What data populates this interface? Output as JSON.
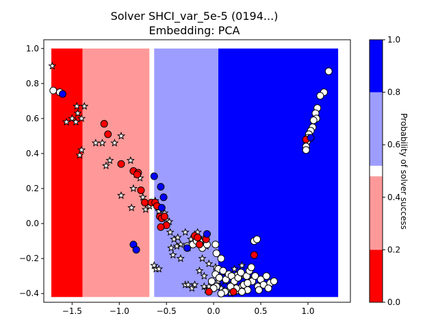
{
  "chart_data": {
    "type": "scatter",
    "title_line1": "Solver SHCI_var_5e-5 (0194...)",
    "title_line2": "Embedding: PCA",
    "xlim": [
      -1.8,
      1.45
    ],
    "ylim": [
      -0.45,
      1.05
    ],
    "x_ticks": [
      -1.5,
      -1.0,
      -0.5,
      0.0,
      0.5,
      1.0
    ],
    "x_tick_labels": [
      "−1.5",
      "−1.0",
      "−0.5",
      "0.0",
      "0.5",
      "1.0"
    ],
    "y_ticks": [
      -0.4,
      -0.2,
      0.0,
      0.2,
      0.4,
      0.6,
      0.8,
      1.0
    ],
    "y_tick_labels": [
      "−0.4",
      "−0.2",
      "0.0",
      "0.2",
      "0.4",
      "0.6",
      "0.8",
      "1.0"
    ],
    "grid": false,
    "background_regions": {
      "y_range": [
        -0.42,
        1.0
      ],
      "x_range": [
        -1.72,
        1.32
      ],
      "bands": [
        {
          "x_start": -1.72,
          "x_end": -1.39,
          "probability": 0.1,
          "color": "#ff0000"
        },
        {
          "x_start": -1.39,
          "x_end": -0.68,
          "probability": 0.3,
          "color": "#ff9999"
        },
        {
          "x_start": -0.68,
          "x_end": -0.63,
          "probability": 0.5,
          "color": "#ffffff"
        },
        {
          "x_start": -0.63,
          "x_end": 0.05,
          "probability": 0.7,
          "color": "#9d9dff"
        },
        {
          "x_start": 0.05,
          "x_end": 1.32,
          "probability": 0.9,
          "color": "#0000ff"
        }
      ]
    },
    "colorbar": {
      "label": "Probability of solver success",
      "ticks": [
        0.0,
        0.2,
        0.4,
        0.6,
        0.8,
        1.0
      ],
      "tick_labels": [
        "0.0",
        "0.2",
        "0.4",
        "0.6",
        "0.8",
        "1.0"
      ],
      "segments": [
        {
          "from": 0.0,
          "to": 0.2,
          "color": "#ff0000"
        },
        {
          "from": 0.2,
          "to": 0.48,
          "color": "#ff9999"
        },
        {
          "from": 0.48,
          "to": 0.52,
          "color": "#ffffff"
        },
        {
          "from": 0.52,
          "to": 0.8,
          "color": "#9d9dff"
        },
        {
          "from": 0.8,
          "to": 1.0,
          "color": "#0000ff"
        }
      ]
    },
    "series": [
      {
        "marker": "star",
        "fill": "#ffffff",
        "edge": "#000000",
        "points": [
          [
            -1.71,
            0.9
          ],
          [
            -1.56,
            0.58
          ],
          [
            -1.5,
            0.6
          ],
          [
            -1.46,
            0.58
          ],
          [
            -1.45,
            0.67
          ],
          [
            -1.44,
            0.63
          ],
          [
            -1.4,
            0.6
          ],
          [
            -1.37,
            0.67
          ],
          [
            -1.42,
            0.39
          ],
          [
            -1.4,
            0.42
          ],
          [
            -1.25,
            0.46
          ],
          [
            -1.18,
            0.46
          ],
          [
            -1.14,
            0.33
          ],
          [
            -1.1,
            0.36
          ],
          [
            -1.05,
            0.46
          ],
          [
            -0.98,
            0.5
          ],
          [
            -0.88,
            0.36
          ],
          [
            -0.98,
            0.16
          ],
          [
            -0.87,
            0.09
          ],
          [
            -0.85,
            0.2
          ],
          [
            -0.82,
            0.28
          ],
          [
            -0.78,
            0.26
          ],
          [
            -0.75,
            0.15
          ],
          [
            -0.72,
            0.08
          ],
          [
            -0.68,
            0.1
          ],
          [
            -0.62,
            0.13
          ],
          [
            -0.58,
            0.07
          ],
          [
            -0.52,
            0.06
          ],
          [
            -0.5,
            0.02
          ],
          [
            -0.47,
            0.01
          ],
          [
            -0.46,
            -0.05
          ],
          [
            -0.42,
            -0.09
          ],
          [
            -0.38,
            -0.08
          ],
          [
            -0.35,
            -0.12
          ],
          [
            -0.3,
            -0.05
          ],
          [
            -0.27,
            -0.14
          ],
          [
            -0.24,
            -0.09
          ],
          [
            -0.2,
            -0.11
          ],
          [
            -0.17,
            -0.05
          ],
          [
            -0.13,
            -0.1
          ],
          [
            -0.1,
            -0.08
          ],
          [
            -0.08,
            -0.13
          ],
          [
            -0.45,
            -0.14
          ],
          [
            -0.43,
            -0.18
          ],
          [
            -0.39,
            -0.13
          ],
          [
            -0.35,
            -0.2
          ],
          [
            -0.15,
            -0.27
          ],
          [
            -0.1,
            -0.3
          ],
          [
            -0.05,
            -0.23
          ],
          [
            -0.12,
            -0.2
          ],
          [
            -0.63,
            -0.24
          ],
          [
            -0.61,
            -0.26
          ],
          [
            -0.58,
            -0.26
          ],
          [
            -0.3,
            -0.35
          ],
          [
            -0.27,
            -0.35
          ],
          [
            -0.23,
            -0.37
          ],
          [
            -0.2,
            -0.35
          ],
          [
            -0.1,
            -0.36
          ],
          [
            -0.07,
            -0.38
          ],
          [
            -0.05,
            -0.36
          ],
          [
            0.05,
            -0.33
          ],
          [
            0.08,
            -0.37
          ],
          [
            0.12,
            -0.33
          ],
          [
            0.15,
            -0.38
          ],
          [
            0.2,
            -0.34
          ],
          [
            0.24,
            -0.29
          ],
          [
            0.28,
            -0.36
          ],
          [
            0.32,
            -0.3
          ],
          [
            0.35,
            -0.37
          ],
          [
            0.4,
            -0.32
          ],
          [
            0.3,
            -0.24
          ],
          [
            0.22,
            -0.26
          ],
          [
            0.1,
            -0.28
          ],
          [
            0.02,
            -0.25
          ],
          [
            0.26,
            -0.39
          ],
          [
            0.18,
            -0.4
          ]
        ]
      },
      {
        "marker": "circle",
        "fill": "#ffffff",
        "edge": "#000000",
        "points": [
          [
            -1.7,
            0.76
          ],
          [
            -1.63,
            0.75
          ],
          [
            1.22,
            0.87
          ],
          [
            1.17,
            0.75
          ],
          [
            1.13,
            0.73
          ],
          [
            1.1,
            0.66
          ],
          [
            1.08,
            0.63
          ],
          [
            1.09,
            0.6
          ],
          [
            1.06,
            0.59
          ],
          [
            1.05,
            0.55
          ],
          [
            1.03,
            0.53
          ],
          [
            1.01,
            0.51
          ],
          [
            1.0,
            0.49
          ],
          [
            0.99,
            0.47
          ],
          [
            0.98,
            0.44
          ],
          [
            0.98,
            0.42
          ],
          [
            -0.28,
            -0.13
          ],
          [
            -0.22,
            -0.12
          ],
          [
            -0.18,
            -0.1
          ],
          [
            -0.12,
            -0.14
          ],
          [
            -0.07,
            -0.12
          ],
          [
            0.02,
            -0.12
          ],
          [
            0.03,
            -0.17
          ],
          [
            0.08,
            -0.2
          ],
          [
            0.05,
            -0.26
          ],
          [
            0.02,
            -0.29
          ],
          [
            0.06,
            -0.31
          ],
          [
            0.1,
            -0.27
          ],
          [
            0.13,
            -0.32
          ],
          [
            0.16,
            -0.29
          ],
          [
            0.19,
            -0.3
          ],
          [
            0.22,
            -0.33
          ],
          [
            0.26,
            -0.31
          ],
          [
            0.29,
            -0.28
          ],
          [
            0.32,
            -0.35
          ],
          [
            0.35,
            -0.3
          ],
          [
            0.38,
            -0.27
          ],
          [
            0.41,
            -0.33
          ],
          [
            0.44,
            -0.3
          ],
          [
            0.47,
            -0.36
          ],
          [
            0.5,
            -0.32
          ],
          [
            0.53,
            -0.35
          ],
          [
            0.56,
            -0.3
          ],
          [
            0.6,
            -0.34
          ],
          [
            0.64,
            -0.33
          ],
          [
            0.43,
            -0.1
          ],
          [
            0.46,
            -0.09
          ],
          [
            0.4,
            -0.25
          ],
          [
            0.36,
            -0.38
          ],
          [
            0.3,
            -0.39
          ],
          [
            0.24,
            -0.37
          ],
          [
            0.18,
            -0.36
          ],
          [
            0.12,
            -0.39
          ],
          [
            0.08,
            -0.4
          ],
          [
            0.03,
            -0.36
          ],
          [
            -0.02,
            -0.33
          ],
          [
            0.0,
            -0.37
          ],
          [
            0.58,
            -0.37
          ],
          [
            0.48,
            -0.38
          ],
          [
            0.36,
            -0.34
          ]
        ]
      },
      {
        "marker": "circle",
        "fill": "#ff0000",
        "edge": "#000000",
        "points": [
          [
            -1.16,
            0.57
          ],
          [
            -1.12,
            0.51
          ],
          [
            -0.98,
            0.34
          ],
          [
            -0.85,
            0.3
          ],
          [
            -0.8,
            0.29
          ],
          [
            -0.81,
            0.28
          ],
          [
            -0.77,
            0.19
          ],
          [
            -0.73,
            0.12
          ],
          [
            -0.66,
            0.12
          ],
          [
            -0.62,
            0.12
          ],
          [
            -0.6,
            0.1
          ],
          [
            -0.57,
            0.04
          ],
          [
            -0.55,
            0.03
          ],
          [
            -0.52,
            0.04
          ],
          [
            -0.5,
            -0.01
          ],
          [
            -0.56,
            -0.02
          ],
          [
            -0.2,
            -0.07
          ],
          [
            -0.17,
            -0.08
          ],
          [
            -0.15,
            -0.12
          ],
          [
            -0.08,
            -0.09
          ],
          [
            -0.05,
            -0.39
          ],
          [
            0.21,
            -0.39
          ],
          [
            0.43,
            -0.18
          ],
          [
            0.98,
            0.48
          ]
        ]
      },
      {
        "marker": "circle",
        "fill": "#0000ff",
        "edge": "#000000",
        "points": [
          [
            -1.6,
            0.74
          ],
          [
            -0.63,
            0.27
          ],
          [
            -0.56,
            0.21
          ],
          [
            -0.53,
            0.15
          ],
          [
            -0.55,
            0.09
          ],
          [
            -0.85,
            -0.12
          ],
          [
            -0.82,
            -0.15
          ],
          [
            -0.28,
            -0.14
          ],
          [
            -0.07,
            -0.06
          ],
          [
            1.03,
            0.49
          ]
        ]
      }
    ]
  }
}
